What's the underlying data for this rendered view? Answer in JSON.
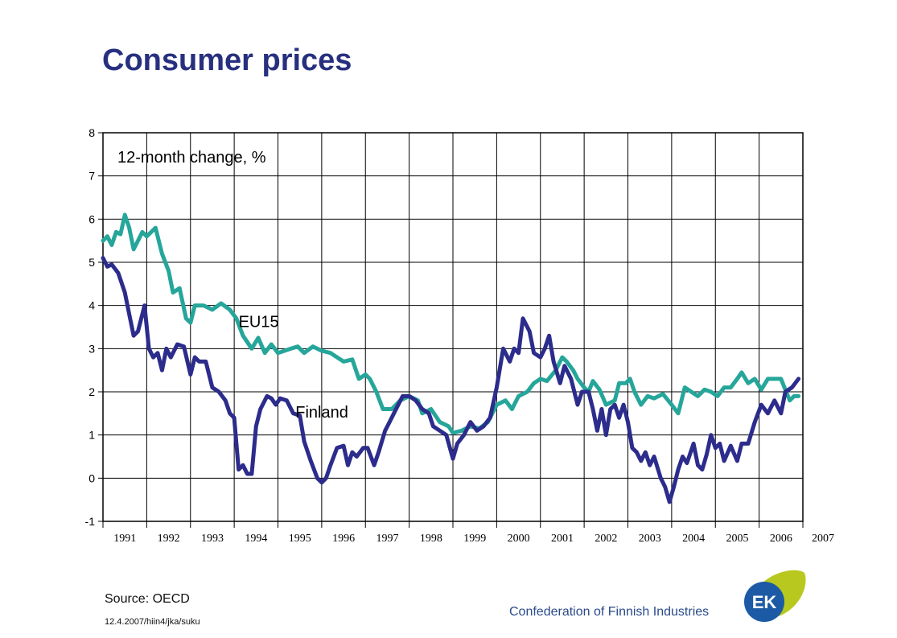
{
  "slide": {
    "title": "Consumer prices",
    "source": "Source: OECD",
    "footnote": "12.4.2007/hiin4/jka/suku",
    "org_name": "Confederation of Finnish Industries",
    "logo_text": "EK",
    "colors": {
      "title": "#27307f",
      "org": "#2a4a8a",
      "logo_blue": "#1c5aa6",
      "logo_lime": "#b8c81e"
    }
  },
  "chart_data": {
    "type": "line",
    "subtitle": "12-month change, %",
    "xlabel": "",
    "ylabel": "",
    "xlim": [
      1991.0,
      2007.0
    ],
    "ylim": [
      -1,
      8
    ],
    "yticks": [
      -1,
      0,
      1,
      2,
      3,
      4,
      5,
      6,
      7,
      8
    ],
    "x_tick_labels": [
      "1991",
      "1992",
      "1993",
      "1994",
      "1995",
      "1996",
      "1997",
      "1998",
      "1999",
      "2000",
      "2001",
      "2002",
      "2003",
      "2004",
      "2005",
      "2006",
      "2007"
    ],
    "grid": true,
    "annotations": [
      {
        "text": "EU15",
        "x": 1994.1,
        "y": 3.5
      },
      {
        "text": "Finland",
        "x": 1995.4,
        "y": 1.4
      }
    ],
    "series": [
      {
        "name": "EU15",
        "color": "#26a69a",
        "points": [
          [
            1991.0,
            5.5
          ],
          [
            1991.1,
            5.6
          ],
          [
            1991.2,
            5.4
          ],
          [
            1991.3,
            5.7
          ],
          [
            1991.4,
            5.65
          ],
          [
            1991.5,
            6.1
          ],
          [
            1991.6,
            5.8
          ],
          [
            1991.7,
            5.3
          ],
          [
            1991.8,
            5.5
          ],
          [
            1991.9,
            5.7
          ],
          [
            1992.0,
            5.6
          ],
          [
            1992.2,
            5.8
          ],
          [
            1992.35,
            5.2
          ],
          [
            1992.5,
            4.8
          ],
          [
            1992.6,
            4.3
          ],
          [
            1992.75,
            4.4
          ],
          [
            1992.9,
            3.7
          ],
          [
            1993.0,
            3.6
          ],
          [
            1993.1,
            4.0
          ],
          [
            1993.3,
            4.0
          ],
          [
            1993.5,
            3.9
          ],
          [
            1993.7,
            4.05
          ],
          [
            1993.9,
            3.9
          ],
          [
            1994.05,
            3.7
          ],
          [
            1994.2,
            3.3
          ],
          [
            1994.4,
            3.0
          ],
          [
            1994.55,
            3.25
          ],
          [
            1994.7,
            2.9
          ],
          [
            1994.85,
            3.1
          ],
          [
            1995.0,
            2.9
          ],
          [
            1995.3,
            3.0
          ],
          [
            1995.45,
            3.05
          ],
          [
            1995.6,
            2.9
          ],
          [
            1995.8,
            3.05
          ],
          [
            1996.0,
            2.95
          ],
          [
            1996.2,
            2.9
          ],
          [
            1996.35,
            2.8
          ],
          [
            1996.5,
            2.7
          ],
          [
            1996.7,
            2.75
          ],
          [
            1996.85,
            2.3
          ],
          [
            1997.0,
            2.4
          ],
          [
            1997.1,
            2.3
          ],
          [
            1997.25,
            2.0
          ],
          [
            1997.4,
            1.6
          ],
          [
            1997.6,
            1.6
          ],
          [
            1997.8,
            1.8
          ],
          [
            1998.0,
            1.9
          ],
          [
            1998.2,
            1.8
          ],
          [
            1998.3,
            1.5
          ],
          [
            1998.5,
            1.6
          ],
          [
            1998.7,
            1.3
          ],
          [
            1998.9,
            1.2
          ],
          [
            1999.0,
            1.05
          ],
          [
            1999.2,
            1.1
          ],
          [
            1999.4,
            1.2
          ],
          [
            1999.6,
            1.15
          ],
          [
            1999.8,
            1.3
          ],
          [
            2000.0,
            1.7
          ],
          [
            2000.2,
            1.8
          ],
          [
            2000.35,
            1.6
          ],
          [
            2000.5,
            1.9
          ],
          [
            2000.7,
            2.0
          ],
          [
            2000.85,
            2.2
          ],
          [
            2001.0,
            2.3
          ],
          [
            2001.15,
            2.25
          ],
          [
            2001.35,
            2.5
          ],
          [
            2001.5,
            2.8
          ],
          [
            2001.6,
            2.7
          ],
          [
            2001.75,
            2.5
          ],
          [
            2001.85,
            2.3
          ],
          [
            2002.0,
            2.1
          ],
          [
            2002.1,
            2.0
          ],
          [
            2002.2,
            2.25
          ],
          [
            2002.35,
            2.05
          ],
          [
            2002.5,
            1.7
          ],
          [
            2002.7,
            1.8
          ],
          [
            2002.8,
            2.2
          ],
          [
            2002.95,
            2.2
          ],
          [
            2003.05,
            2.3
          ],
          [
            2003.15,
            2.0
          ],
          [
            2003.3,
            1.7
          ],
          [
            2003.45,
            1.9
          ],
          [
            2003.6,
            1.85
          ],
          [
            2003.8,
            1.95
          ],
          [
            2004.0,
            1.7
          ],
          [
            2004.15,
            1.5
          ],
          [
            2004.3,
            2.1
          ],
          [
            2004.45,
            2.0
          ],
          [
            2004.6,
            1.9
          ],
          [
            2004.75,
            2.05
          ],
          [
            2004.9,
            2.0
          ],
          [
            2005.05,
            1.9
          ],
          [
            2005.2,
            2.1
          ],
          [
            2005.35,
            2.1
          ],
          [
            2005.5,
            2.3
          ],
          [
            2005.6,
            2.45
          ],
          [
            2005.75,
            2.2
          ],
          [
            2005.9,
            2.3
          ],
          [
            2006.05,
            2.05
          ],
          [
            2006.2,
            2.3
          ],
          [
            2006.35,
            2.3
          ],
          [
            2006.5,
            2.3
          ],
          [
            2006.6,
            2.05
          ],
          [
            2006.7,
            1.8
          ],
          [
            2006.8,
            1.9
          ],
          [
            2006.9,
            1.9
          ]
        ]
      },
      {
        "name": "Finland",
        "color": "#2c2c8c",
        "points": [
          [
            1991.0,
            5.1
          ],
          [
            1991.1,
            4.9
          ],
          [
            1991.2,
            4.95
          ],
          [
            1991.35,
            4.75
          ],
          [
            1991.5,
            4.3
          ],
          [
            1991.6,
            3.8
          ],
          [
            1991.7,
            3.3
          ],
          [
            1991.8,
            3.4
          ],
          [
            1991.95,
            4.0
          ],
          [
            1992.05,
            3.0
          ],
          [
            1992.15,
            2.8
          ],
          [
            1992.25,
            2.9
          ],
          [
            1992.35,
            2.5
          ],
          [
            1992.45,
            3.0
          ],
          [
            1992.55,
            2.8
          ],
          [
            1992.7,
            3.1
          ],
          [
            1992.85,
            3.05
          ],
          [
            1993.0,
            2.4
          ],
          [
            1993.1,
            2.8
          ],
          [
            1993.2,
            2.7
          ],
          [
            1993.35,
            2.7
          ],
          [
            1993.5,
            2.1
          ],
          [
            1993.65,
            2.0
          ],
          [
            1993.8,
            1.8
          ],
          [
            1993.9,
            1.5
          ],
          [
            1994.0,
            1.4
          ],
          [
            1994.1,
            0.2
          ],
          [
            1994.2,
            0.3
          ],
          [
            1994.3,
            0.1
          ],
          [
            1994.4,
            0.1
          ],
          [
            1994.5,
            1.2
          ],
          [
            1994.6,
            1.6
          ],
          [
            1994.75,
            1.9
          ],
          [
            1994.85,
            1.85
          ],
          [
            1994.95,
            1.7
          ],
          [
            1995.05,
            1.85
          ],
          [
            1995.2,
            1.8
          ],
          [
            1995.35,
            1.5
          ],
          [
            1995.5,
            1.45
          ],
          [
            1995.6,
            0.85
          ],
          [
            1995.75,
            0.4
          ],
          [
            1995.9,
            0.0
          ],
          [
            1996.0,
            -0.1
          ],
          [
            1996.1,
            0.0
          ],
          [
            1996.2,
            0.3
          ],
          [
            1996.35,
            0.7
          ],
          [
            1996.5,
            0.75
          ],
          [
            1996.6,
            0.3
          ],
          [
            1996.7,
            0.6
          ],
          [
            1996.8,
            0.5
          ],
          [
            1996.95,
            0.7
          ],
          [
            1997.05,
            0.7
          ],
          [
            1997.2,
            0.3
          ],
          [
            1997.3,
            0.6
          ],
          [
            1997.45,
            1.1
          ],
          [
            1997.55,
            1.3
          ],
          [
            1997.7,
            1.6
          ],
          [
            1997.85,
            1.9
          ],
          [
            1998.0,
            1.9
          ],
          [
            1998.15,
            1.8
          ],
          [
            1998.3,
            1.6
          ],
          [
            1998.45,
            1.5
          ],
          [
            1998.55,
            1.2
          ],
          [
            1998.7,
            1.1
          ],
          [
            1998.85,
            1.0
          ],
          [
            1999.0,
            0.45
          ],
          [
            1999.1,
            0.8
          ],
          [
            1999.25,
            1.0
          ],
          [
            1999.4,
            1.3
          ],
          [
            1999.55,
            1.1
          ],
          [
            1999.7,
            1.2
          ],
          [
            1999.85,
            1.4
          ],
          [
            2000.0,
            2.1
          ],
          [
            2000.15,
            3.0
          ],
          [
            2000.3,
            2.7
          ],
          [
            2000.4,
            3.0
          ],
          [
            2000.5,
            2.9
          ],
          [
            2000.6,
            3.7
          ],
          [
            2000.75,
            3.4
          ],
          [
            2000.85,
            2.9
          ],
          [
            2001.0,
            2.8
          ],
          [
            2001.1,
            3.0
          ],
          [
            2001.2,
            3.3
          ],
          [
            2001.3,
            2.7
          ],
          [
            2001.45,
            2.2
          ],
          [
            2001.55,
            2.6
          ],
          [
            2001.7,
            2.3
          ],
          [
            2001.85,
            1.7
          ],
          [
            2001.95,
            2.0
          ],
          [
            2002.1,
            2.0
          ],
          [
            2002.2,
            1.6
          ],
          [
            2002.3,
            1.1
          ],
          [
            2002.4,
            1.6
          ],
          [
            2002.5,
            1.0
          ],
          [
            2002.6,
            1.6
          ],
          [
            2002.7,
            1.7
          ],
          [
            2002.8,
            1.4
          ],
          [
            2002.9,
            1.7
          ],
          [
            2003.0,
            1.3
          ],
          [
            2003.1,
            0.7
          ],
          [
            2003.2,
            0.6
          ],
          [
            2003.3,
            0.4
          ],
          [
            2003.4,
            0.6
          ],
          [
            2003.5,
            0.3
          ],
          [
            2003.6,
            0.5
          ],
          [
            2003.75,
            0.0
          ],
          [
            2003.85,
            -0.2
          ],
          [
            2003.95,
            -0.55
          ],
          [
            2004.05,
            -0.2
          ],
          [
            2004.15,
            0.2
          ],
          [
            2004.25,
            0.5
          ],
          [
            2004.35,
            0.35
          ],
          [
            2004.5,
            0.8
          ],
          [
            2004.6,
            0.3
          ],
          [
            2004.7,
            0.2
          ],
          [
            2004.8,
            0.55
          ],
          [
            2004.9,
            1.0
          ],
          [
            2005.0,
            0.7
          ],
          [
            2005.1,
            0.8
          ],
          [
            2005.2,
            0.4
          ],
          [
            2005.35,
            0.75
          ],
          [
            2005.5,
            0.4
          ],
          [
            2005.6,
            0.8
          ],
          [
            2005.75,
            0.8
          ],
          [
            2005.9,
            1.3
          ],
          [
            2006.05,
            1.7
          ],
          [
            2006.2,
            1.5
          ],
          [
            2006.35,
            1.8
          ],
          [
            2006.5,
            1.5
          ],
          [
            2006.6,
            2.0
          ],
          [
            2006.75,
            2.1
          ],
          [
            2006.9,
            2.3
          ]
        ]
      }
    ]
  }
}
